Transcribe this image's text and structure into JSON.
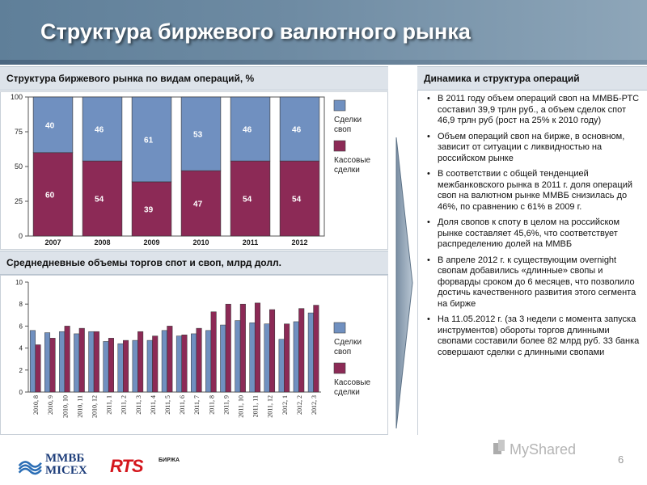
{
  "title": "Структура биржевого валютного рынка",
  "left_top_heading": "Структура биржевого рынка по видам операций, %",
  "left_mid_heading": "Среднедневные  объемы торгов спот и своп, млрд долл.",
  "right_heading": "Динамика и структура операций",
  "colors": {
    "swap": "#7090c0",
    "spot": "#8c2a56",
    "header": "#6e8ba3"
  },
  "chart_data": [
    {
      "type": "bar",
      "stacked": true,
      "categories": [
        "2007",
        "2008",
        "2009",
        "2010",
        "2011",
        "2012"
      ],
      "series": [
        {
          "name": "Кассовые сделки",
          "values": [
            60,
            54,
            39,
            47,
            54,
            54
          ]
        },
        {
          "name": "Сделки своп",
          "values": [
            40,
            46,
            61,
            53,
            46,
            46
          ]
        }
      ],
      "ylim": [
        0,
        100
      ],
      "yticks": [
        0,
        25,
        50,
        75,
        100
      ],
      "legend": [
        "Сделки своп",
        "Кассовые сделки"
      ],
      "legend_position": "right"
    },
    {
      "type": "bar",
      "categories": [
        "2010, 8",
        "2010, 9",
        "2010, 10",
        "2010, 11",
        "2010, 12",
        "2011, 1",
        "2011, 2",
        "2011, 3",
        "2011, 4",
        "2011, 5",
        "2011, 6",
        "2011, 7",
        "2011, 8",
        "2011, 9",
        "2011, 10",
        "2011, 11",
        "2011, 12",
        "2012, 1",
        "2012, 2",
        "2012, 3"
      ],
      "series": [
        {
          "name": "Кассовые сделки",
          "values": [
            4.3,
            4.9,
            6.0,
            5.8,
            5.5,
            4.9,
            4.7,
            5.5,
            5.1,
            6.0,
            5.2,
            5.8,
            7.3,
            8.0,
            8.0,
            8.1,
            7.5,
            6.2,
            7.6,
            7.9
          ]
        },
        {
          "name": "Сделки своп",
          "values": [
            5.6,
            5.4,
            5.5,
            5.3,
            5.5,
            4.6,
            4.4,
            4.7,
            4.7,
            5.6,
            5.1,
            5.3,
            5.6,
            6.1,
            6.5,
            6.3,
            6.2,
            4.8,
            6.4,
            7.2
          ]
        }
      ],
      "ylim": [
        0,
        10
      ],
      "yticks": [
        0,
        2,
        4,
        6,
        8,
        10
      ],
      "legend": [
        "Сделки своп",
        "Кассовые сделки"
      ],
      "legend_position": "right"
    }
  ],
  "legend_labels": {
    "swap": "Сделки своп",
    "spot": "Кассовые сделки"
  },
  "bullets": [
    "В 2011 году объем операций своп на ММВБ-РТС составил 39,9 трлн руб., а объем сделок спот 46,9 трлн руб (рост на 25% к 2010 году)",
    "Объем операций своп на бирже, в основном, зависит от ситуации с ликвидностью на российском рынке",
    "В соответствии с общей тенденцией межбанковского рынка в 2011 г. доля операций своп на валютном рынке ММВБ снизилась до 46%, по сравнению с 61% в 2009 г.",
    "Доля свопов к споту в целом на российском рынке составляет 45,6%, что соответствует распределению долей на ММВБ",
    "В апреле 2012 г. к существующим overnight свопам добавились «длинные» свопы и форварды сроком до 6 месяцев, что позволило достичь качественного развития этого сегмента на бирже",
    "На 11.05.2012 г. (за 3 недели с момента запуска инструментов) обороты торгов длинными свопами составили более 82 млрд руб. 33 банка совершают сделки с длинными свопами"
  ],
  "footer": {
    "mmvb_line1": "ММВБ",
    "mmvb_line2": "MICEX",
    "rts": "RTS",
    "rts_sub": "БИРЖА",
    "page_number": "6",
    "watermark": "MyShared"
  }
}
